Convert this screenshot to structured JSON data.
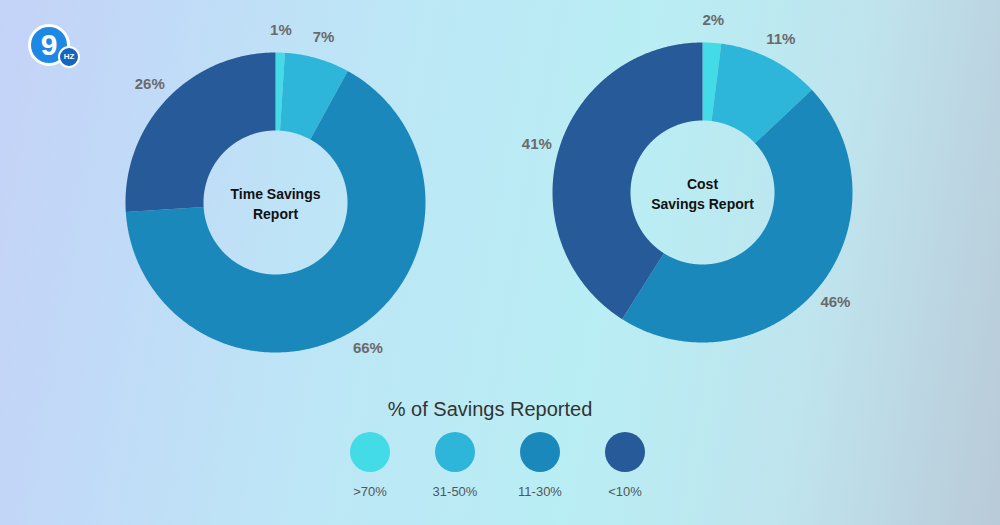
{
  "chart_data": [
    {
      "type": "pie",
      "title": "Time Savings\nReport",
      "categories": [
        ">70%",
        "31-50%",
        "11-30%",
        "<10%"
      ],
      "values": [
        1,
        7,
        66,
        26
      ],
      "value_labels": [
        "1%",
        "7%",
        "66%",
        "26%"
      ],
      "colors": [
        "#42dbe6",
        "#2db6d9",
        "#1b88bc",
        "#265a98"
      ],
      "data_labels": true
    },
    {
      "type": "pie",
      "title": "Cost\nSavings Report",
      "categories": [
        ">70%",
        "31-50%",
        "11-30%",
        "<10%"
      ],
      "values": [
        2,
        11,
        46,
        41
      ],
      "value_labels": [
        "2%",
        "11%",
        "46%",
        "41%"
      ],
      "colors": [
        "#42dbe6",
        "#2db6d9",
        "#1b88bc",
        "#265a98"
      ],
      "data_labels": true
    }
  ],
  "shared_legend": {
    "title": "% of Savings Reported"
  },
  "logo": {
    "main": "9",
    "badge": "HZ"
  }
}
